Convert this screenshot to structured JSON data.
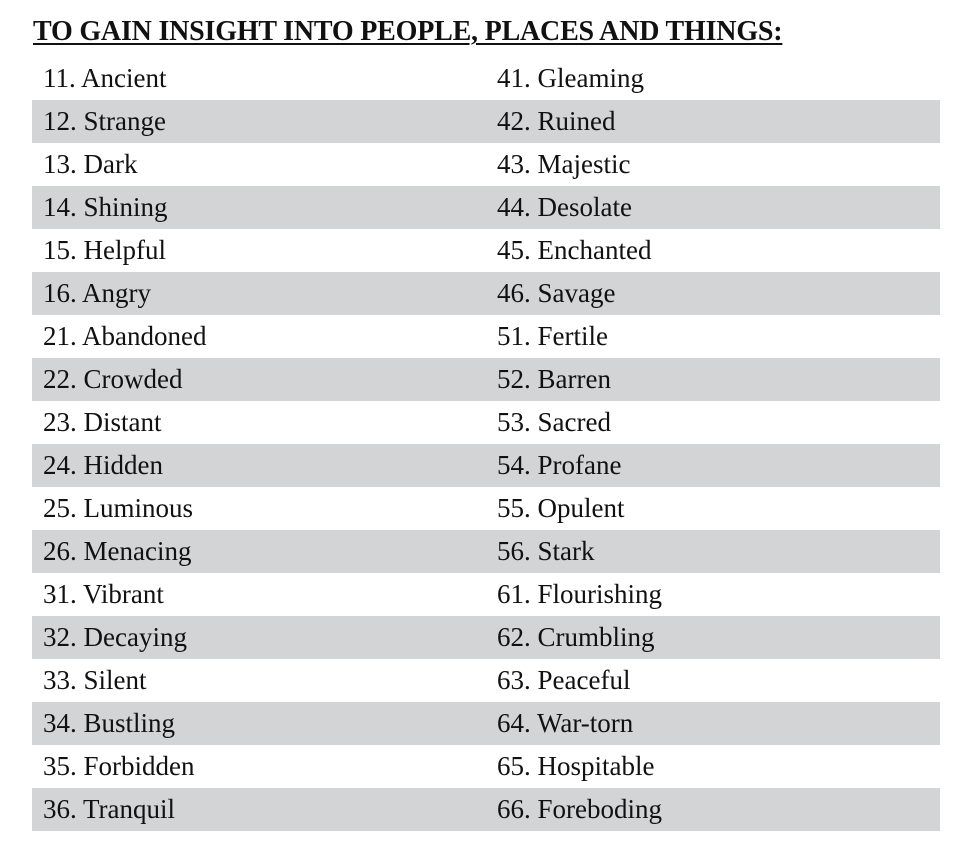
{
  "title": "TO GAIN INSIGHT INTO PEOPLE, PLACES AND THINGS:",
  "rows": [
    {
      "left": "11. Ancient",
      "right": "41. Gleaming"
    },
    {
      "left": "12. Strange",
      "right": "42. Ruined"
    },
    {
      "left": "13. Dark",
      "right": "43. Majestic"
    },
    {
      "left": "14. Shining",
      "right": "44. Desolate"
    },
    {
      "left": "15. Helpful",
      "right": "45. Enchanted"
    },
    {
      "left": "16. Angry",
      "right": "46. Savage"
    },
    {
      "left": "21. Abandoned",
      "right": "51. Fertile"
    },
    {
      "left": "22. Crowded",
      "right": "52. Barren"
    },
    {
      "left": "23. Distant",
      "right": "53. Sacred"
    },
    {
      "left": "24. Hidden",
      "right": "54. Profane"
    },
    {
      "left": "25. Luminous",
      "right": "55. Opulent"
    },
    {
      "left": "26. Menacing",
      "right": "56. Stark"
    },
    {
      "left": "31. Vibrant",
      "right": "61. Flourishing"
    },
    {
      "left": "32. Decaying",
      "right": "62. Crumbling"
    },
    {
      "left": "33. Silent",
      "right": "63. Peaceful"
    },
    {
      "left": "34. Bustling",
      "right": "64. War-torn"
    },
    {
      "left": "35. Forbidden",
      "right": "65. Hospitable"
    },
    {
      "left": "36. Tranquil",
      "right": "66. Foreboding"
    }
  ]
}
